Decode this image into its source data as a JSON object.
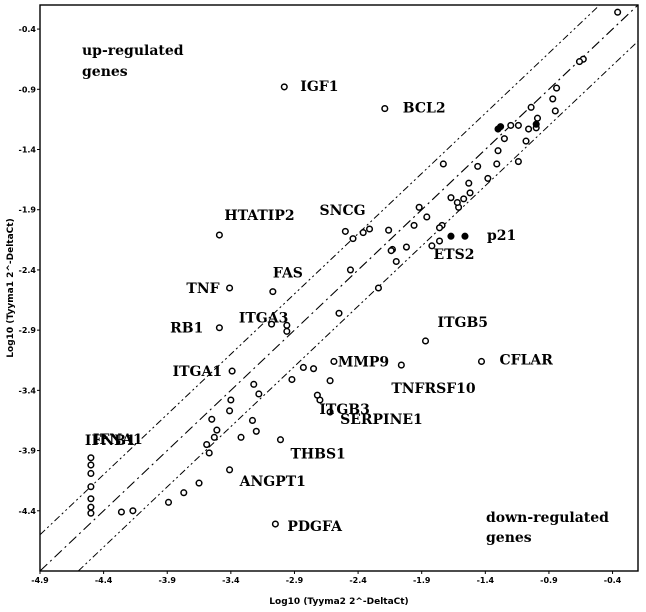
{
  "chart_data": {
    "type": "scatter",
    "xlabel": "Log10 (Tyyma2 2^-DeltaCt)",
    "ylabel": "Log10 (Tyyma1 2^-DeltaCt)",
    "xlim": [
      -4.9,
      -0.2
    ],
    "ylim": [
      -4.9,
      -0.2
    ],
    "x_ticks": [
      "-4.9",
      "-4.4",
      "-3.9",
      "-3.4",
      "-2.9",
      "-2.4",
      "-1.9",
      "-1.4",
      "-0.9",
      "-0.4"
    ],
    "y_ticks": [
      "-0.4",
      "-0.9",
      "-1.4",
      "-1.9",
      "-2.4",
      "-2.9",
      "-3.4",
      "-3.9",
      "-4.4"
    ],
    "grid": false,
    "corner_labels": {
      "upper": [
        "up-regulated",
        "genes"
      ],
      "lower": [
        "down-regulated",
        "genes"
      ]
    },
    "reference_lines": {
      "identity": true,
      "fold_band_log10": 0.301
    },
    "points": [
      {
        "x": -0.36,
        "y": -0.26
      },
      {
        "x": -0.63,
        "y": -0.65
      },
      {
        "x": -0.66,
        "y": -0.67
      },
      {
        "x": -0.84,
        "y": -0.89
      },
      {
        "x": -0.85,
        "y": -1.08
      },
      {
        "x": -0.87,
        "y": -0.98
      },
      {
        "x": -0.99,
        "y": -1.14
      },
      {
        "x": -1.0,
        "y": -1.22
      },
      {
        "x": -1.0,
        "y": -1.19,
        "filled": true
      },
      {
        "x": -1.04,
        "y": -1.05
      },
      {
        "x": -1.06,
        "y": -1.23
      },
      {
        "x": -1.08,
        "y": -1.33
      },
      {
        "x": -1.14,
        "y": -1.2
      },
      {
        "x": -1.14,
        "y": -1.5
      },
      {
        "x": -1.2,
        "y": -1.2
      },
      {
        "x": -1.25,
        "y": -1.31
      },
      {
        "x": -1.28,
        "y": -1.21,
        "filled": true
      },
      {
        "x": -1.3,
        "y": -1.23,
        "filled": true
      },
      {
        "x": -1.3,
        "y": -1.41
      },
      {
        "x": -1.31,
        "y": -1.52
      },
      {
        "x": -1.38,
        "y": -1.64
      },
      {
        "x": -1.46,
        "y": -1.54
      },
      {
        "x": -1.52,
        "y": -1.76
      },
      {
        "x": -1.53,
        "y": -1.68
      },
      {
        "x": -1.57,
        "y": -1.81
      },
      {
        "x": -1.61,
        "y": -1.88
      },
      {
        "x": -1.62,
        "y": -1.84
      },
      {
        "x": -1.67,
        "y": -1.8
      },
      {
        "x": -1.67,
        "y": -2.12,
        "filled": true
      },
      {
        "x": -1.73,
        "y": -1.52
      },
      {
        "x": -1.74,
        "y": -2.03
      },
      {
        "x": -1.76,
        "y": -2.05
      },
      {
        "x": -1.82,
        "y": -2.2
      },
      {
        "x": -1.86,
        "y": -1.96
      },
      {
        "x": -1.92,
        "y": -1.88
      },
      {
        "x": -1.96,
        "y": -2.03
      },
      {
        "x": -2.02,
        "y": -2.21
      },
      {
        "x": -2.1,
        "y": -2.33
      },
      {
        "x": -2.13,
        "y": -2.23
      },
      {
        "x": -2.14,
        "y": -2.24
      },
      {
        "x": -2.16,
        "y": -2.07
      },
      {
        "x": -2.24,
        "y": -2.55
      },
      {
        "x": -2.36,
        "y": -2.09
      },
      {
        "x": -2.44,
        "y": -2.14
      },
      {
        "x": -2.46,
        "y": -2.4
      },
      {
        "x": -2.5,
        "y": -2.08
      },
      {
        "x": -2.55,
        "y": -2.76
      },
      {
        "x": -2.62,
        "y": -3.32
      },
      {
        "x": -2.7,
        "y": -3.48
      },
      {
        "x": -2.75,
        "y": -3.22
      },
      {
        "x": -2.83,
        "y": -3.21
      },
      {
        "x": -2.92,
        "y": -3.31
      },
      {
        "x": -2.96,
        "y": -2.86
      },
      {
        "x": -3.08,
        "y": -2.85
      },
      {
        "x": -3.18,
        "y": -3.43
      },
      {
        "x": -3.2,
        "y": -3.74
      },
      {
        "x": -3.22,
        "y": -3.35
      },
      {
        "x": -3.23,
        "y": -3.65
      },
      {
        "x": -3.32,
        "y": -3.79
      },
      {
        "x": -3.4,
        "y": -3.48
      },
      {
        "x": -3.41,
        "y": -3.57
      },
      {
        "x": -3.51,
        "y": -3.73
      },
      {
        "x": -3.53,
        "y": -3.79
      },
      {
        "x": -3.55,
        "y": -3.64
      },
      {
        "x": -3.57,
        "y": -3.92
      },
      {
        "x": -3.59,
        "y": -3.85
      },
      {
        "x": -3.65,
        "y": -4.17
      },
      {
        "x": -3.77,
        "y": -4.25
      },
      {
        "x": -3.89,
        "y": -4.33
      },
      {
        "x": -4.17,
        "y": -4.4
      },
      {
        "x": -4.26,
        "y": -4.41
      },
      {
        "x": -4.5,
        "y": -4.09
      },
      {
        "x": -4.5,
        "y": -4.2
      },
      {
        "x": -4.5,
        "y": -4.3
      },
      {
        "x": -4.5,
        "y": -4.37
      },
      {
        "x": -4.5,
        "y": -4.42
      }
    ],
    "labeled_points": [
      {
        "name": "IGF1",
        "x": -2.98,
        "y": -0.88
      },
      {
        "name": "BCL2",
        "x": -2.19,
        "y": -1.06
      },
      {
        "name": "HTATIP2",
        "x": -3.49,
        "y": -2.11
      },
      {
        "name": "SNCG",
        "x": -2.31,
        "y": -2.06
      },
      {
        "name": "FAS",
        "x": -3.07,
        "y": -2.58
      },
      {
        "name": "TNF",
        "x": -3.41,
        "y": -2.55
      },
      {
        "name": "RB1",
        "x": -3.49,
        "y": -2.88
      },
      {
        "name": "ITGA3",
        "x": -2.96,
        "y": -2.91
      },
      {
        "name": "ITGA1",
        "x": -3.39,
        "y": -3.24
      },
      {
        "name": "MMP9",
        "x": -2.59,
        "y": -3.16
      },
      {
        "name": "ITGB5",
        "x": -1.87,
        "y": -2.99
      },
      {
        "name": "CFLAR",
        "x": -1.43,
        "y": -3.16
      },
      {
        "name": "TNFRSF10",
        "x": -2.06,
        "y": -3.19
      },
      {
        "name": "ITGB3",
        "x": -2.72,
        "y": -3.44
      },
      {
        "name": "SERPINE1",
        "x": -2.62,
        "y": -3.58
      },
      {
        "name": "IFNA1",
        "x": -4.5,
        "y": -3.96
      },
      {
        "name": "IFNB1",
        "x": -4.5,
        "y": -4.02
      },
      {
        "name": "THBS1",
        "x": -3.01,
        "y": -3.81
      },
      {
        "name": "ANGPT1",
        "x": -3.41,
        "y": -4.06
      },
      {
        "name": "PDGFA",
        "x": -3.05,
        "y": -4.51
      },
      {
        "name": "p21",
        "x": -1.56,
        "y": -2.12,
        "filled": true
      },
      {
        "name": "ETS2",
        "x": -1.76,
        "y": -2.16
      }
    ]
  }
}
